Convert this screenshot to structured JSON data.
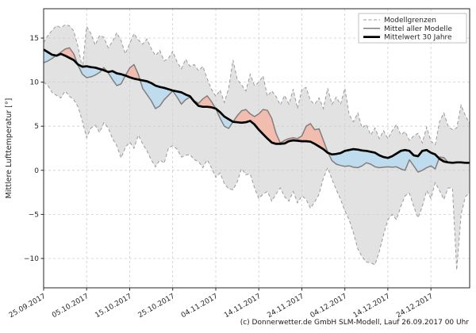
{
  "figure": {
    "caption": "(c) Donnerwetter.de GmbH SLM-Modell, Lauf 26.09.2017 00 Uhr"
  },
  "chart_data": {
    "type": "line",
    "title": "",
    "xlabel": "",
    "ylabel": "Mittlere Lufttemperatur [°]",
    "grid": true,
    "legend_position": "upper right",
    "ylim": [
      -13.3,
      18.3
    ],
    "yticks": [
      15,
      10,
      5,
      0,
      -5,
      -10
    ],
    "ytick_labels": [
      "15",
      "10",
      "5",
      "0",
      "−5",
      "−10"
    ],
    "xtick_days": [
      0,
      10,
      20,
      30,
      40,
      50,
      60,
      70,
      80,
      90
    ],
    "xtick_labels": [
      "25.09.2017",
      "05.10.2017",
      "15.10.2017",
      "25.10.2017",
      "04.11.2017",
      "14.11.2017",
      "24.11.2017",
      "04.12.2017",
      "14.12.2017",
      "24.12.2017"
    ],
    "legend": [
      {
        "label": "Modellgrenzen",
        "style": "dashed",
        "color": "#9a9a9a",
        "width": 1
      },
      {
        "label": "Mittel aller Modelle",
        "style": "solid",
        "color": "#7f7f7f",
        "width": 1.5
      },
      {
        "label": "Mittelwert 30 Jahre",
        "style": "solid",
        "color": "#000000",
        "width": 2.8
      }
    ],
    "colors": {
      "band_fill": "#e2e2e2",
      "band_edge": "#9a9a9a",
      "warmer_fill": "#f2bcae",
      "colder_fill": "#bedcee",
      "model_mean_line": "#7f7f7f",
      "mean30_line": "#000000",
      "grid_line": "#cdcdcd",
      "axis": "#262626"
    },
    "x_start_date": "25.09.2017",
    "x_step": "1 day",
    "series": [
      {
        "name": "Modellgrenzen (oben)",
        "role": "band-upper",
        "values": [
          14.5,
          15.3,
          15.9,
          16.4,
          16.2,
          16.5,
          16.4,
          15.8,
          14.0,
          11.6,
          16.3,
          15.5,
          14.2,
          15.3,
          15.1,
          13.9,
          14.6,
          15.6,
          14.7,
          13.2,
          14.4,
          15.5,
          14.8,
          14.3,
          14.9,
          13.8,
          13.0,
          13.6,
          12.4,
          12.7,
          13.5,
          12.3,
          11.5,
          12.6,
          11.8,
          12.0,
          11.3,
          11.8,
          10.4,
          9.2,
          8.4,
          9.1,
          7.7,
          9.3,
          12.5,
          10.3,
          9.7,
          9.0,
          10.9,
          9.6,
          10.0,
          10.7,
          8.4,
          9.0,
          8.4,
          7.4,
          8.5,
          7.5,
          9.2,
          7.0,
          9.2,
          9.4,
          7.9,
          7.5,
          8.2,
          7.0,
          9.3,
          7.5,
          8.3,
          7.5,
          9.3,
          6.3,
          5.5,
          6.5,
          4.8,
          5.2,
          4.0,
          4.8,
          3.6,
          4.5,
          3.6,
          4.5,
          5.2,
          4.0,
          4.4,
          3.4,
          3.9,
          4.2,
          3.1,
          4.9,
          3.3,
          2.9,
          5.5,
          6.5,
          5.0,
          4.6,
          4.8,
          7.4,
          6.2,
          5.3
        ]
      },
      {
        "name": "Modellgrenzen (unten)",
        "role": "band-lower",
        "values": [
          10.0,
          9.6,
          8.8,
          8.5,
          8.2,
          9.0,
          8.4,
          8.0,
          7.2,
          5.6,
          3.7,
          4.8,
          5.1,
          4.3,
          5.4,
          4.8,
          3.6,
          2.8,
          1.4,
          2.6,
          3.2,
          2.5,
          4.0,
          3.0,
          2.2,
          1.2,
          0.4,
          1.2,
          0.8,
          2.5,
          2.8,
          2.4,
          1.5,
          1.7,
          1.8,
          1.2,
          1.0,
          0.3,
          1.2,
          0.3,
          -0.8,
          -0.3,
          -1.5,
          -2.1,
          -2.2,
          -1.3,
          0.2,
          -0.5,
          -0.4,
          -2.0,
          -3.2,
          -2.7,
          -2.4,
          -3.5,
          -2.7,
          -2.0,
          -3.0,
          -3.5,
          -2.4,
          -3.7,
          -2.9,
          -3.3,
          -4.3,
          -3.6,
          -2.7,
          -0.9,
          0.3,
          -1.0,
          -2.2,
          -3.3,
          -4.6,
          -5.6,
          -7.1,
          -8.9,
          -9.8,
          -10.4,
          -10.5,
          -10.7,
          -9.2,
          -7.3,
          -5.6,
          -5.0,
          -5.6,
          -4.1,
          -2.9,
          -2.6,
          -4.1,
          -5.4,
          -4.1,
          -2.3,
          -3.2,
          -1.4,
          -2.3,
          -3.3,
          -2.0,
          -2.0,
          -11.3,
          -5.0,
          -3.0,
          -2.5
        ]
      },
      {
        "name": "Mittel aller Modelle",
        "role": "model-mean",
        "values": [
          12.2,
          12.4,
          12.7,
          13.05,
          13.4,
          13.75,
          13.9,
          13.2,
          11.9,
          10.9,
          10.5,
          10.6,
          10.8,
          11.1,
          11.65,
          11.05,
          10.3,
          9.6,
          9.8,
          10.75,
          11.6,
          12.0,
          10.9,
          9.3,
          8.6,
          7.9,
          7.0,
          7.3,
          8.0,
          8.5,
          9.0,
          8.3,
          7.5,
          8.0,
          8.3,
          7.9,
          7.6,
          8.1,
          8.45,
          7.8,
          7.0,
          5.9,
          5.0,
          4.75,
          5.5,
          6.2,
          6.75,
          6.9,
          6.4,
          6.1,
          6.4,
          6.9,
          6.8,
          5.9,
          4.2,
          3.1,
          3.4,
          3.6,
          3.7,
          3.6,
          3.9,
          5.0,
          5.3,
          4.6,
          4.7,
          3.4,
          2.1,
          1.1,
          0.7,
          0.55,
          0.45,
          0.5,
          0.35,
          0.3,
          0.5,
          0.85,
          0.7,
          0.4,
          0.3,
          0.35,
          0.4,
          0.35,
          0.4,
          0.15,
          0.0,
          1.2,
          0.5,
          -0.2,
          0.0,
          0.3,
          0.5,
          0.15,
          1.5,
          1.45,
          0.9,
          0.8,
          0.85,
          0.85,
          0.8,
          0.8
        ]
      },
      {
        "name": "Mittelwert 30 Jahre",
        "role": "mean-30y",
        "values": [
          13.7,
          13.4,
          13.1,
          13.0,
          13.2,
          13.0,
          12.75,
          12.5,
          12.0,
          11.75,
          11.8,
          11.7,
          11.65,
          11.5,
          11.35,
          11.15,
          11.25,
          11.0,
          10.9,
          10.75,
          10.55,
          10.4,
          10.3,
          10.2,
          10.1,
          9.9,
          9.6,
          9.45,
          9.35,
          9.2,
          9.05,
          8.95,
          8.85,
          8.6,
          8.4,
          7.8,
          7.3,
          7.2,
          7.2,
          7.15,
          7.0,
          6.6,
          6.1,
          5.8,
          5.5,
          5.45,
          5.4,
          5.45,
          5.6,
          5.2,
          4.6,
          4.1,
          3.6,
          3.15,
          3.0,
          3.0,
          3.05,
          3.3,
          3.4,
          3.35,
          3.3,
          3.3,
          3.25,
          3.0,
          2.7,
          2.4,
          2.0,
          1.8,
          1.85,
          1.95,
          2.2,
          2.3,
          2.4,
          2.35,
          2.25,
          2.2,
          2.1,
          2.0,
          1.7,
          1.5,
          1.4,
          1.6,
          1.9,
          2.2,
          2.3,
          2.2,
          1.7,
          1.6,
          2.2,
          2.3,
          2.0,
          1.8,
          1.3,
          1.0,
          0.9,
          0.85,
          0.9,
          0.9,
          0.85,
          0.85
        ]
      }
    ]
  }
}
